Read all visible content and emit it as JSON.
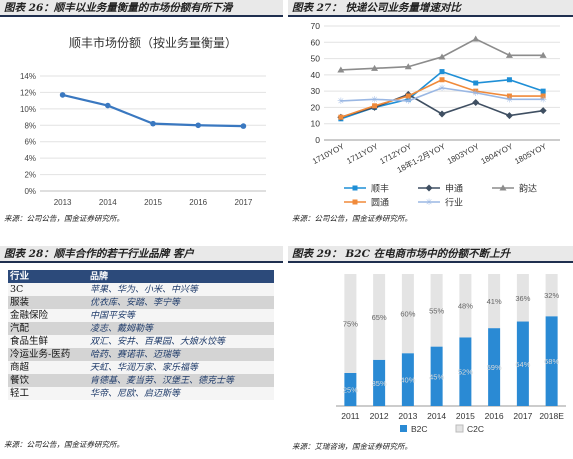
{
  "panels": {
    "p26": {
      "title": "图表 26：顺丰以业务量衡量的市场份额有所下滑",
      "source": "来源：公司公告，国金证券研究所。"
    },
    "p27": {
      "title": "图表 27：  快递公司业务量增速对比",
      "source": "来源：公司公告，国金证券研究所。"
    },
    "p28": {
      "title": "图表 28：顺丰合作的若干行业品牌 客户",
      "source": "来源：公司公告，国金证券研究所。"
    },
    "p29": {
      "title": "图表 29：  B2C 在电商市场中的份额不断上升",
      "source": "来源：艾瑞咨询，国金证券研究所。"
    }
  },
  "chart_data": [
    {
      "id": "fig26",
      "type": "line",
      "title": "顺丰市场份额（按业务量衡量）",
      "categories": [
        "2013",
        "2014",
        "2015",
        "2016",
        "2017"
      ],
      "series": [
        {
          "name": "顺丰市场份额",
          "values": [
            11.7,
            10.4,
            8.2,
            8.0,
            7.9
          ],
          "color": "#3a78c0"
        }
      ],
      "ylim": [
        0,
        14
      ],
      "yticks": [
        "0%",
        "2%",
        "4%",
        "6%",
        "8%",
        "10%",
        "12%",
        "14%"
      ],
      "grid": true
    },
    {
      "id": "fig27",
      "type": "line",
      "categories": [
        "1710YOY",
        "1711YOY",
        "1712YOY",
        "18年1-2月YOY",
        "1803YOY",
        "1804YOY",
        "1805YOY"
      ],
      "series": [
        {
          "name": "顺丰",
          "values": [
            13,
            20,
            25,
            42,
            35,
            37,
            30
          ],
          "color": "#1f8fd6",
          "marker": "square"
        },
        {
          "name": "申通",
          "values": [
            14,
            20,
            28,
            16,
            23,
            15,
            18
          ],
          "color": "#3f4f62",
          "marker": "diamond"
        },
        {
          "name": "韵达",
          "values": [
            43,
            44,
            45,
            51,
            62,
            52,
            52
          ],
          "color": "#8c8c8c",
          "marker": "triangle"
        },
        {
          "name": "圆通",
          "values": [
            14,
            21,
            27,
            37,
            30,
            27,
            27
          ],
          "color": "#f08a3a",
          "marker": "square"
        },
        {
          "name": "行业",
          "values": [
            24,
            25,
            24,
            32,
            29,
            25,
            25
          ],
          "color": "#9ab7e3",
          "marker": "star"
        }
      ],
      "ylim": [
        0,
        70
      ],
      "yticks": [
        "0",
        "10",
        "20",
        "30",
        "40",
        "50",
        "60",
        "70"
      ],
      "grid": true,
      "legend": "bottom"
    },
    {
      "id": "fig28",
      "type": "table",
      "headers": [
        "行业",
        "品牌"
      ],
      "rows": [
        [
          "3C",
          "苹果、华为、小米、中兴等"
        ],
        [
          "服装",
          "优衣库、安踏、李宁等"
        ],
        [
          "金融保险",
          "中国平安等"
        ],
        [
          "汽配",
          "凌志、戴姆勒等"
        ],
        [
          "食品生鲜",
          "双汇、安井、百果园、大娘水饺等"
        ],
        [
          "冷运业务-医药",
          "哈药、赛诺菲、迈瑞等"
        ],
        [
          "商超",
          "天虹、华润万家、家乐福等"
        ],
        [
          "餐饮",
          "肯德基、麦当劳、汉堡王、德克士等"
        ],
        [
          "轻工",
          "华帝、尼欧、启迈斯等"
        ]
      ]
    },
    {
      "id": "fig29",
      "type": "bar",
      "stacked": true,
      "categories": [
        "2011",
        "2012",
        "2013",
        "2014",
        "2015",
        "2016",
        "2017",
        "2018E"
      ],
      "series": [
        {
          "name": "B2C",
          "values": [
            25,
            35,
            40,
            45,
            52,
            59,
            64,
            68
          ],
          "labels": [
            "25%",
            "35%",
            "40%",
            "45%",
            "52%",
            "59%",
            "64%",
            "68%"
          ],
          "color": "#2a8ad4"
        },
        {
          "name": "C2C",
          "values": [
            75,
            65,
            60,
            55,
            48,
            41,
            36,
            32
          ],
          "labels": [
            "75%",
            "65%",
            "60%",
            "55%",
            "48%",
            "41%",
            "36%",
            "32%"
          ],
          "color": "#e4e4e4"
        }
      ],
      "ylim": [
        0,
        100
      ],
      "legend": "bottom"
    }
  ]
}
